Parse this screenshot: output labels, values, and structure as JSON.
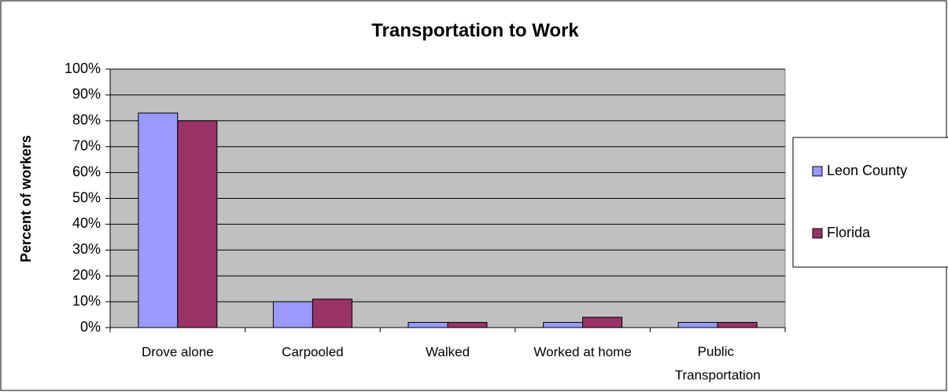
{
  "chart_data": {
    "type": "bar",
    "title": "Transportation to Work",
    "y_label": "Percent of workers",
    "categories": [
      "Drove alone",
      "Carpooled",
      "Walked",
      "Worked at home",
      "Public Transportation"
    ],
    "series": [
      {
        "name": "Leon County",
        "color": "#9999ff",
        "values": [
          83,
          10,
          2,
          2,
          2
        ]
      },
      {
        "name": "Florida",
        "color": "#993366",
        "values": [
          80,
          11,
          2,
          4,
          2
        ]
      }
    ],
    "ylim": [
      0,
      100
    ],
    "yticks": [
      {
        "value": 0,
        "label": "0%"
      },
      {
        "value": 10,
        "label": "10%"
      },
      {
        "value": 20,
        "label": "20%"
      },
      {
        "value": 30,
        "label": "30%"
      },
      {
        "value": 40,
        "label": "40%"
      },
      {
        "value": 50,
        "label": "50%"
      },
      {
        "value": 60,
        "label": "60%"
      },
      {
        "value": 70,
        "label": "70%"
      },
      {
        "value": 80,
        "label": "80%"
      },
      {
        "value": 90,
        "label": "90%"
      },
      {
        "value": 100,
        "label": "100%"
      }
    ],
    "grid": true,
    "legend": "right"
  }
}
